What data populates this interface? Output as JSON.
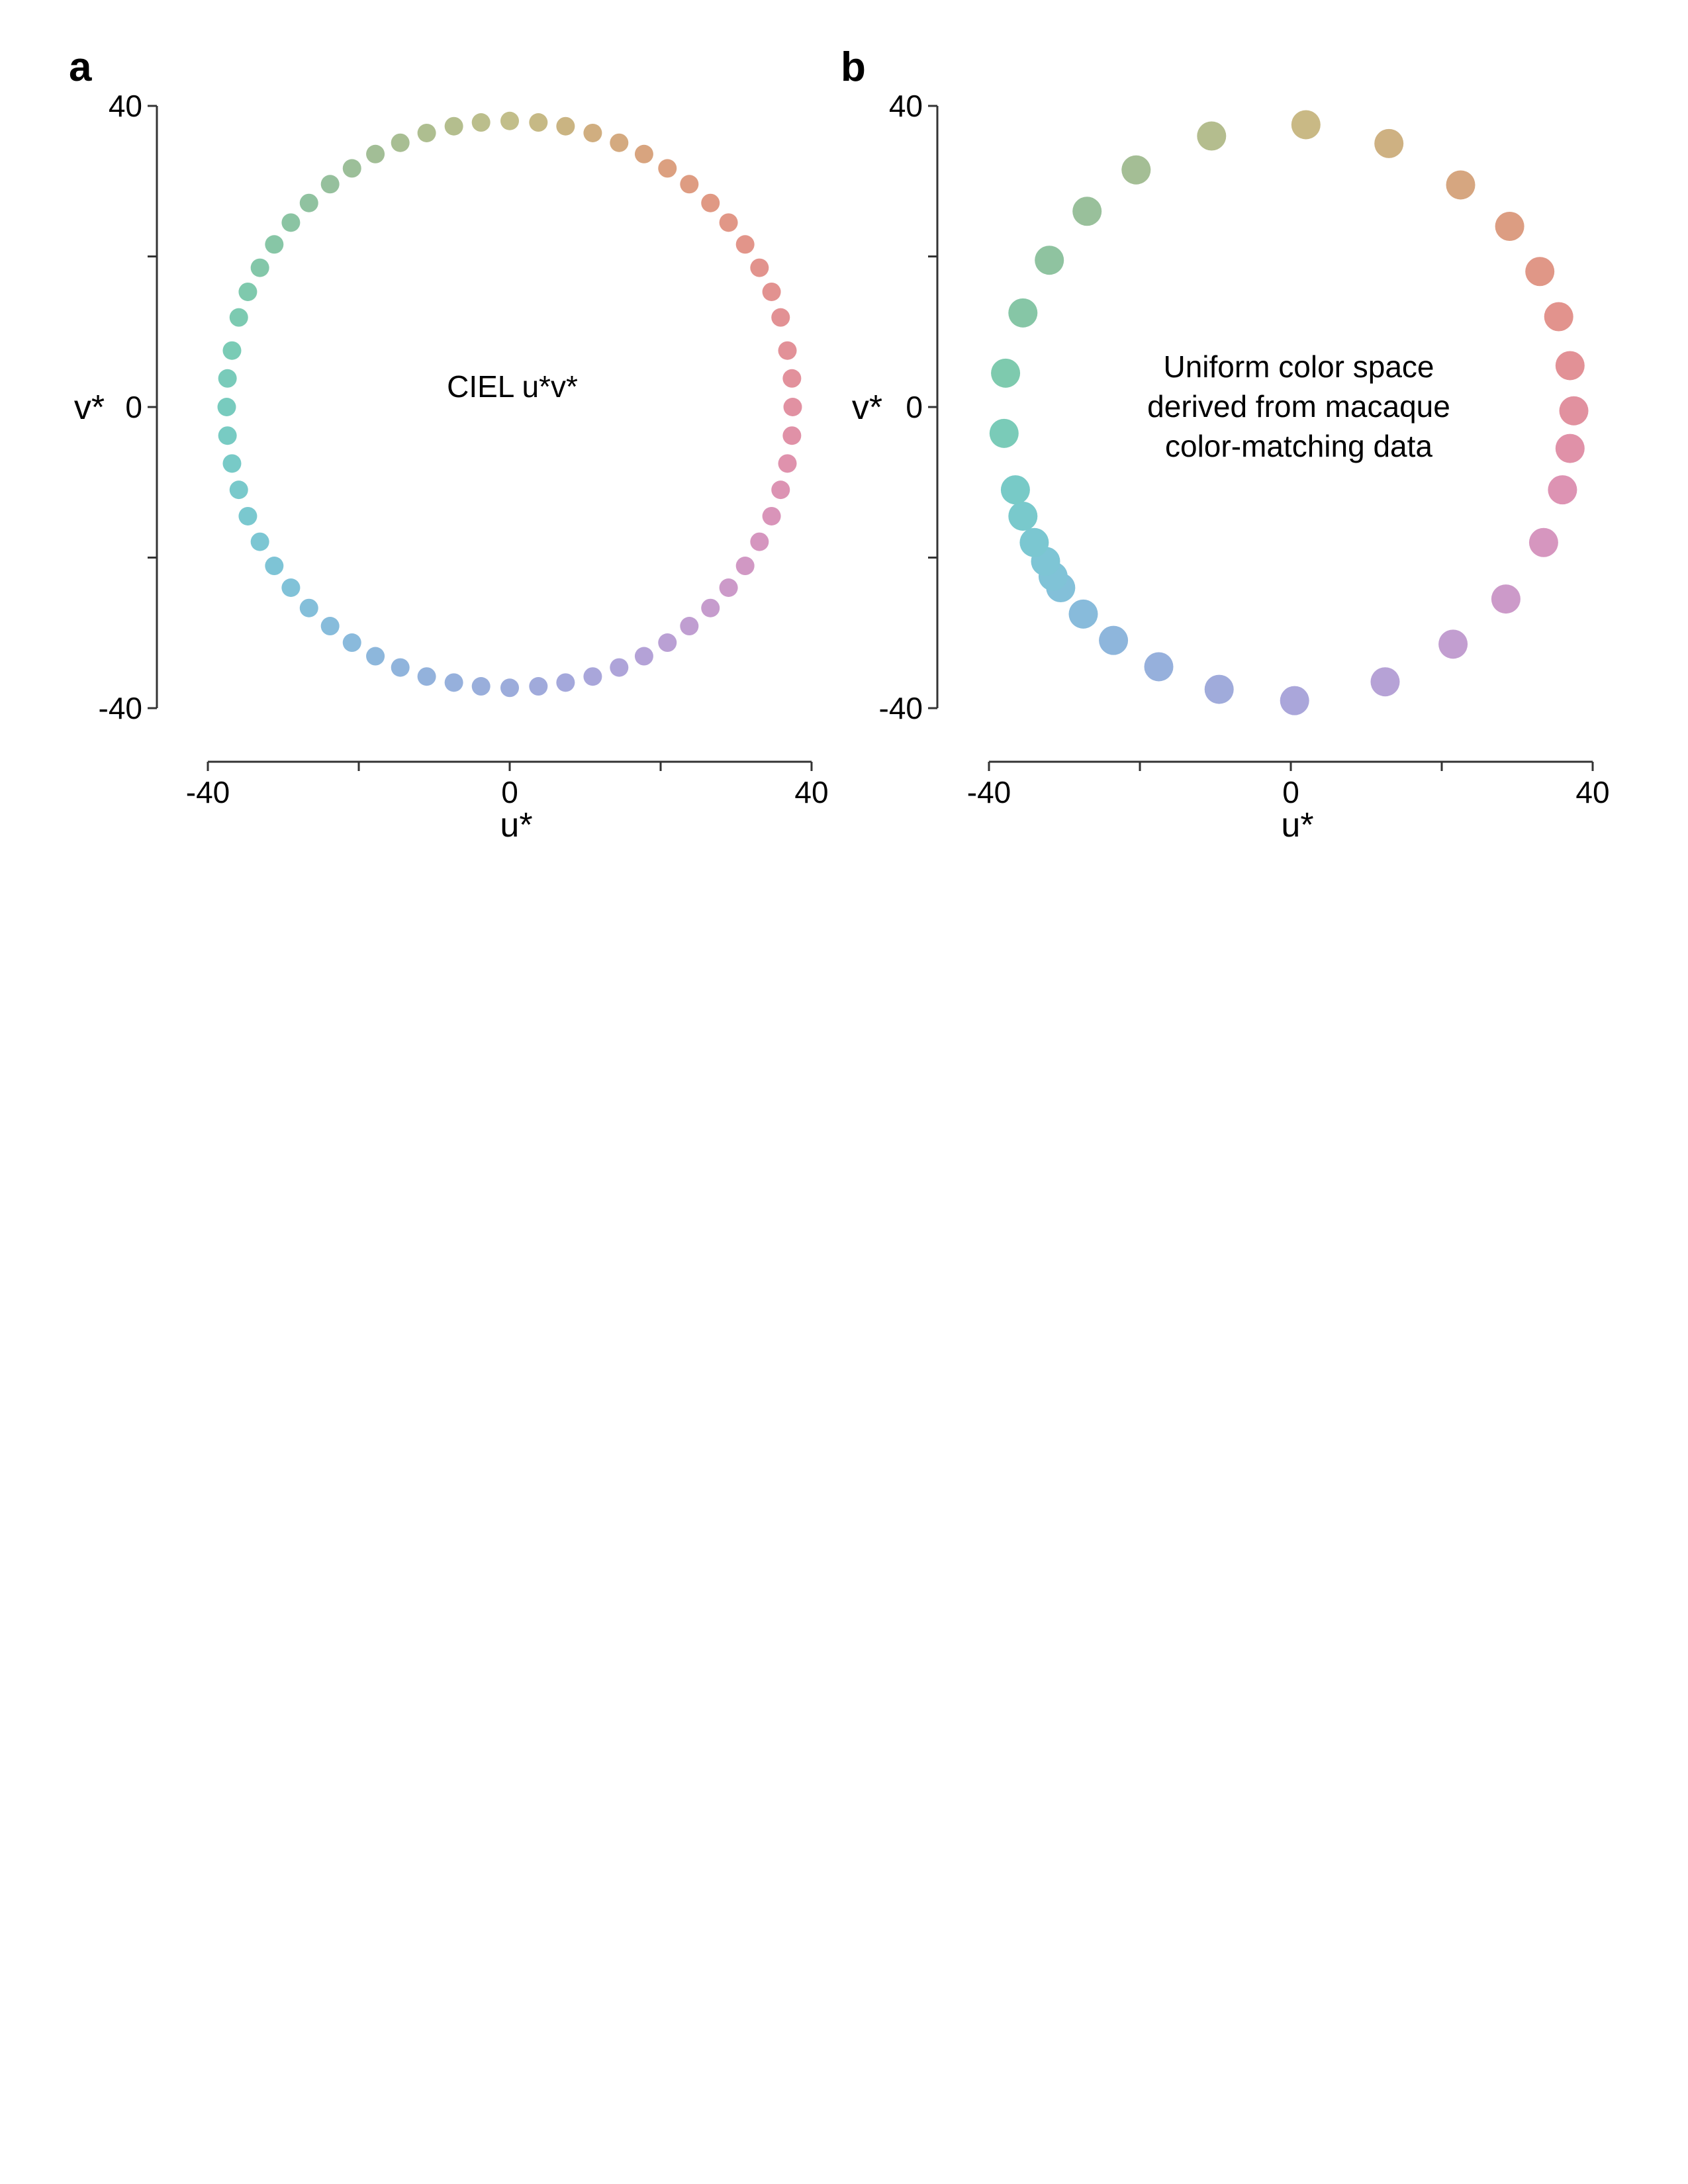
{
  "chart_data": [
    {
      "panel": "a",
      "type": "scatter",
      "annotation_lines": [
        "CIEL u*v*"
      ],
      "xlabel": "u*",
      "ylabel": "v*",
      "xlim": [
        -40,
        40
      ],
      "ylim": [
        -40,
        40
      ],
      "xticks": [
        -40,
        0,
        40
      ],
      "yticks": [
        40,
        0,
        -40
      ],
      "grid": false,
      "legend": "none",
      "points": [
        {
          "u": 0.0,
          "v": 38.0,
          "color": "#c2be8a"
        },
        {
          "u": 3.8,
          "v": 37.8,
          "color": "#c6b985"
        },
        {
          "u": 7.4,
          "v": 37.3,
          "color": "#cab482"
        },
        {
          "u": 11.0,
          "v": 36.4,
          "color": "#d0ae80"
        },
        {
          "u": 14.5,
          "v": 35.1,
          "color": "#d4aa80"
        },
        {
          "u": 17.8,
          "v": 33.6,
          "color": "#d8a47f"
        },
        {
          "u": 20.9,
          "v": 31.7,
          "color": "#dca080"
        },
        {
          "u": 23.8,
          "v": 29.6,
          "color": "#de9c82"
        },
        {
          "u": 26.6,
          "v": 27.1,
          "color": "#e09984"
        },
        {
          "u": 29.0,
          "v": 24.5,
          "color": "#e19787"
        },
        {
          "u": 31.2,
          "v": 21.6,
          "color": "#e2958a"
        },
        {
          "u": 33.1,
          "v": 18.5,
          "color": "#e2938d"
        },
        {
          "u": 34.7,
          "v": 15.3,
          "color": "#e29290"
        },
        {
          "u": 35.9,
          "v": 11.9,
          "color": "#e29194"
        },
        {
          "u": 36.8,
          "v": 7.5,
          "color": "#e29198"
        },
        {
          "u": 37.4,
          "v": 3.8,
          "color": "#e2919c"
        },
        {
          "u": 37.5,
          "v": 0.0,
          "color": "#e191a2"
        },
        {
          "u": 37.4,
          "v": -3.8,
          "color": "#e091a7"
        },
        {
          "u": 36.8,
          "v": -7.5,
          "color": "#df92ad"
        },
        {
          "u": 35.9,
          "v": -11.0,
          "color": "#dc93b3"
        },
        {
          "u": 34.7,
          "v": -14.5,
          "color": "#d994b9"
        },
        {
          "u": 33.1,
          "v": -17.9,
          "color": "#d596bf"
        },
        {
          "u": 31.2,
          "v": -21.1,
          "color": "#d198c4"
        },
        {
          "u": 29.0,
          "v": -24.0,
          "color": "#cc9ac9"
        },
        {
          "u": 26.6,
          "v": -26.7,
          "color": "#c69ccd"
        },
        {
          "u": 23.8,
          "v": -29.1,
          "color": "#c09ed1"
        },
        {
          "u": 20.9,
          "v": -31.3,
          "color": "#baa0d4"
        },
        {
          "u": 17.8,
          "v": -33.1,
          "color": "#b4a2d7"
        },
        {
          "u": 14.5,
          "v": -34.6,
          "color": "#aea4d9"
        },
        {
          "u": 11.0,
          "v": -35.8,
          "color": "#a9a6da"
        },
        {
          "u": 7.4,
          "v": -36.6,
          "color": "#a4a8db"
        },
        {
          "u": 3.8,
          "v": -37.1,
          "color": "#a0aadb"
        },
        {
          "u": 0.0,
          "v": -37.3,
          "color": "#9cacdb"
        },
        {
          "u": -3.8,
          "v": -37.1,
          "color": "#99aedb"
        },
        {
          "u": -7.4,
          "v": -36.6,
          "color": "#96b0dc"
        },
        {
          "u": -11.0,
          "v": -35.8,
          "color": "#93b2dc"
        },
        {
          "u": -14.5,
          "v": -34.6,
          "color": "#90b4dc"
        },
        {
          "u": -17.8,
          "v": -33.1,
          "color": "#8db7dc"
        },
        {
          "u": -20.9,
          "v": -31.3,
          "color": "#8abadc"
        },
        {
          "u": -23.8,
          "v": -29.1,
          "color": "#87bcdb"
        },
        {
          "u": -26.6,
          "v": -26.7,
          "color": "#84bfda"
        },
        {
          "u": -29.0,
          "v": -24.0,
          "color": "#81c2d8"
        },
        {
          "u": -31.2,
          "v": -21.1,
          "color": "#7ec4d6"
        },
        {
          "u": -33.1,
          "v": -17.9,
          "color": "#7cc6d3"
        },
        {
          "u": -34.7,
          "v": -14.5,
          "color": "#7ac8cf"
        },
        {
          "u": -35.9,
          "v": -11.0,
          "color": "#79c9cb"
        },
        {
          "u": -36.8,
          "v": -7.5,
          "color": "#78cac7"
        },
        {
          "u": -37.4,
          "v": -3.8,
          "color": "#78cbc3"
        },
        {
          "u": -37.5,
          "v": 0.0,
          "color": "#78cbbe"
        },
        {
          "u": -37.4,
          "v": 3.8,
          "color": "#79cbba"
        },
        {
          "u": -36.8,
          "v": 7.5,
          "color": "#7acbb5"
        },
        {
          "u": -35.9,
          "v": 11.9,
          "color": "#7ccab1"
        },
        {
          "u": -34.7,
          "v": 15.3,
          "color": "#7fc9ad"
        },
        {
          "u": -33.1,
          "v": 18.5,
          "color": "#83c7a9"
        },
        {
          "u": -31.2,
          "v": 21.6,
          "color": "#87c6a6"
        },
        {
          "u": -29.0,
          "v": 24.5,
          "color": "#8bc4a3"
        },
        {
          "u": -26.6,
          "v": 27.1,
          "color": "#90c2a0"
        },
        {
          "u": -23.8,
          "v": 29.6,
          "color": "#96c09d"
        },
        {
          "u": -20.9,
          "v": 31.7,
          "color": "#9cbf99"
        },
        {
          "u": -17.8,
          "v": 33.6,
          "color": "#a2be96"
        },
        {
          "u": -14.5,
          "v": 35.1,
          "color": "#a8be93"
        },
        {
          "u": -11.0,
          "v": 36.4,
          "color": "#aebe90"
        },
        {
          "u": -7.4,
          "v": 37.3,
          "color": "#b4be8e"
        },
        {
          "u": -3.8,
          "v": 37.8,
          "color": "#bbbe8c"
        }
      ]
    },
    {
      "panel": "b",
      "type": "scatter",
      "annotation_lines": [
        "Uniform color space",
        "derived from macaque",
        "color-matching data"
      ],
      "xlabel": "u*",
      "ylabel": "v*",
      "xlim": [
        -40,
        40
      ],
      "ylim": [
        -40,
        40
      ],
      "xticks": [
        -40,
        0,
        40
      ],
      "yticks": [
        40,
        0,
        -40
      ],
      "grid": false,
      "legend": "none",
      "points": [
        {
          "u": 2.0,
          "v": 37.5,
          "color": "#c9b985"
        },
        {
          "u": 13.0,
          "v": 35.0,
          "color": "#ceb182"
        },
        {
          "u": 22.5,
          "v": 29.5,
          "color": "#d6a680"
        },
        {
          "u": 29.0,
          "v": 24.0,
          "color": "#dc9d82"
        },
        {
          "u": 33.0,
          "v": 18.0,
          "color": "#e09787"
        },
        {
          "u": 35.5,
          "v": 12.0,
          "color": "#e2938d"
        },
        {
          "u": 37.0,
          "v": 5.5,
          "color": "#e29196"
        },
        {
          "u": 37.5,
          "v": -0.5,
          "color": "#e1919f"
        },
        {
          "u": 37.0,
          "v": -5.5,
          "color": "#e091a8"
        },
        {
          "u": 36.0,
          "v": -11.0,
          "color": "#dd93b3"
        },
        {
          "u": 33.5,
          "v": -18.0,
          "color": "#d696bf"
        },
        {
          "u": 28.5,
          "v": -25.5,
          "color": "#cc9ac9"
        },
        {
          "u": 21.5,
          "v": -31.5,
          "color": "#c29ed0"
        },
        {
          "u": 12.5,
          "v": -36.5,
          "color": "#b6a2d6"
        },
        {
          "u": 0.5,
          "v": -39.0,
          "color": "#aaa6da"
        },
        {
          "u": -9.5,
          "v": -37.5,
          "color": "#a0abdb"
        },
        {
          "u": -17.5,
          "v": -34.5,
          "color": "#96b0dc"
        },
        {
          "u": -23.5,
          "v": -31.0,
          "color": "#8eb6dc"
        },
        {
          "u": -27.5,
          "v": -27.5,
          "color": "#88bbdb"
        },
        {
          "u": -30.5,
          "v": -24.0,
          "color": "#83c0d9"
        },
        {
          "u": -31.5,
          "v": -22.5,
          "color": "#80c3d7"
        },
        {
          "u": -32.5,
          "v": -20.5,
          "color": "#7ec5d5"
        },
        {
          "u": -34.0,
          "v": -18.0,
          "color": "#7bc7d1"
        },
        {
          "u": -35.5,
          "v": -14.5,
          "color": "#79c9cc"
        },
        {
          "u": -36.5,
          "v": -11.0,
          "color": "#78cac7"
        },
        {
          "u": -38.0,
          "v": -3.5,
          "color": "#7acbb8"
        },
        {
          "u": -37.8,
          "v": 4.5,
          "color": "#7ecaae"
        },
        {
          "u": -35.5,
          "v": 12.5,
          "color": "#86c6a6"
        },
        {
          "u": -32.0,
          "v": 19.5,
          "color": "#8fc3a0"
        },
        {
          "u": -27.0,
          "v": 26.0,
          "color": "#99c09b"
        },
        {
          "u": -20.5,
          "v": 31.5,
          "color": "#a4be95"
        },
        {
          "u": -10.5,
          "v": 36.0,
          "color": "#b4bd8e"
        }
      ]
    }
  ],
  "panels": [
    {
      "letter": "a"
    },
    {
      "letter": "b"
    }
  ]
}
